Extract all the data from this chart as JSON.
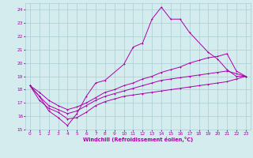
{
  "xlabel": "Windchill (Refroidissement éolien,°C)",
  "xlim": [
    -0.5,
    23.5
  ],
  "ylim": [
    15,
    24.5
  ],
  "xticks": [
    0,
    1,
    2,
    3,
    4,
    5,
    6,
    7,
    8,
    9,
    10,
    11,
    12,
    13,
    14,
    15,
    16,
    17,
    18,
    19,
    20,
    21,
    22,
    23
  ],
  "yticks": [
    15,
    16,
    17,
    18,
    19,
    20,
    21,
    22,
    23,
    24
  ],
  "bg_color": "#d4ecee",
  "grid_color": "#aacdd4",
  "line_color": "#aa00aa",
  "line1_x": [
    0,
    1,
    2,
    3,
    4,
    5,
    6,
    7,
    8,
    10,
    11,
    12,
    13,
    14,
    15,
    16,
    17,
    19,
    20,
    21,
    22,
    23
  ],
  "line1_y": [
    18.3,
    17.5,
    16.4,
    15.9,
    15.3,
    16.2,
    17.5,
    18.5,
    18.7,
    19.9,
    21.2,
    21.5,
    23.3,
    24.2,
    23.3,
    23.3,
    22.3,
    20.8,
    20.3,
    19.5,
    19.0,
    19.0
  ],
  "line2_x": [
    0,
    1,
    2,
    3,
    4,
    5,
    6,
    7,
    8,
    9,
    10,
    11,
    12,
    13,
    14,
    15,
    16,
    17,
    18,
    19,
    20,
    21,
    22,
    23
  ],
  "line2_y": [
    18.3,
    17.8,
    17.2,
    16.8,
    16.5,
    16.7,
    17.0,
    17.4,
    17.8,
    18.0,
    18.3,
    18.5,
    18.8,
    19.0,
    19.3,
    19.5,
    19.7,
    20.0,
    20.2,
    20.4,
    20.5,
    20.7,
    19.4,
    19.0
  ],
  "line3_x": [
    0,
    1,
    2,
    3,
    4,
    5,
    6,
    7,
    8,
    9,
    10,
    11,
    12,
    13,
    14,
    15,
    16,
    17,
    18,
    19,
    20,
    21,
    22,
    23
  ],
  "line3_y": [
    18.3,
    17.5,
    16.8,
    16.5,
    16.2,
    16.4,
    16.8,
    17.2,
    17.5,
    17.7,
    17.9,
    18.1,
    18.3,
    18.5,
    18.7,
    18.8,
    18.9,
    19.0,
    19.1,
    19.2,
    19.3,
    19.4,
    19.2,
    19.0
  ],
  "line4_x": [
    0,
    1,
    2,
    3,
    4,
    5,
    6,
    7,
    8,
    9,
    10,
    11,
    12,
    13,
    14,
    15,
    16,
    17,
    18,
    19,
    20,
    21,
    22,
    23
  ],
  "line4_y": [
    18.3,
    17.2,
    16.6,
    16.3,
    15.8,
    15.9,
    16.3,
    16.8,
    17.1,
    17.3,
    17.5,
    17.6,
    17.7,
    17.8,
    17.9,
    18.0,
    18.1,
    18.2,
    18.3,
    18.4,
    18.5,
    18.6,
    18.8,
    19.0
  ]
}
